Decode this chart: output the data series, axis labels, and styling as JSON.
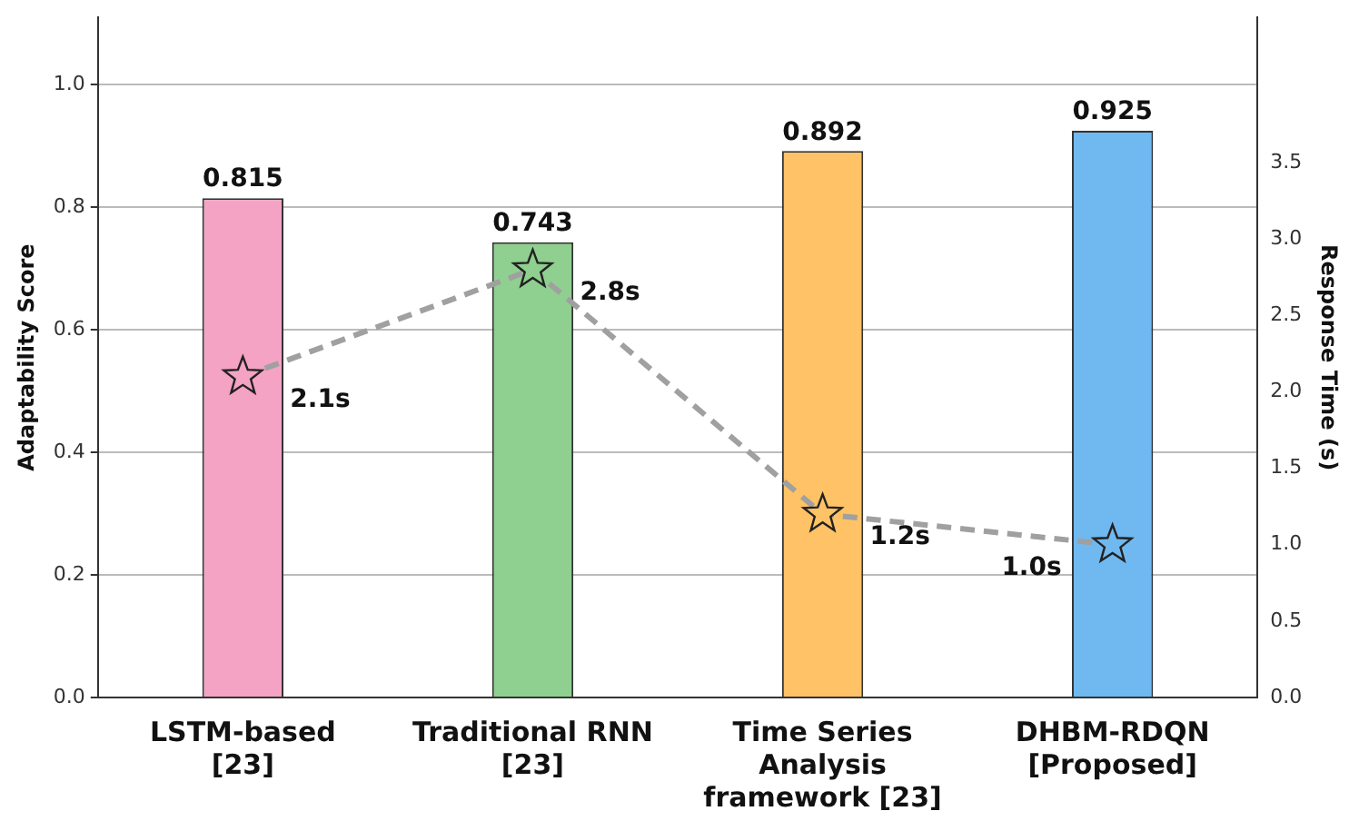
{
  "chart_data": {
    "type": "bar",
    "ylabel": "Adaptability Score",
    "y2label": "Response Time (s)",
    "categories": [
      "LSTM-based\n[23]",
      "Traditional RNN\n[23]",
      "Time Series\nAnalysis\nframework [23]",
      "DHBM-RDQN\n[Proposed]"
    ],
    "series": [
      {
        "colors": [
          "#f4a3c4",
          "#8fcf8f",
          "#ffc266",
          "#70b8f0"
        ],
        "values": [
          0.815,
          0.743,
          0.892,
          0.925
        ]
      },
      {
        "type": "line",
        "axis": "y2",
        "color": "#a0a0a0",
        "line_style": "dashed",
        "marker": "star",
        "colors": [
          "#f4a3c4",
          "#8fcf8f",
          "#ffc266",
          "#70b8f0"
        ],
        "values": [
          2.1,
          2.8,
          1.2,
          1.0
        ],
        "value_labels": [
          "2.1s",
          "2.8s",
          "1.2s",
          "1.0s"
        ]
      }
    ],
    "data_labels": true,
    "grid": "y",
    "legend": false,
    "ylim": [
      0,
      1.11
    ],
    "yticks": [
      {
        "value": 0,
        "label": "0.0"
      },
      {
        "value": 0.2,
        "label": "0.2"
      },
      {
        "value": 0.4,
        "label": "0.4"
      },
      {
        "value": 0.6,
        "label": "0.6"
      },
      {
        "value": 0.8,
        "label": "0.8"
      },
      {
        "value": 1,
        "label": "1.0"
      }
    ],
    "y2lim": [
      0,
      4.45
    ],
    "y2ticks": [
      {
        "value": 0,
        "label": "0.0"
      },
      {
        "value": 0.5,
        "label": "0.5"
      },
      {
        "value": 1,
        "label": "1.0"
      },
      {
        "value": 1.5,
        "label": "1.5"
      },
      {
        "value": 2,
        "label": "2.0"
      },
      {
        "value": 2.5,
        "label": "2.5"
      },
      {
        "value": 3,
        "label": "3.0"
      },
      {
        "value": 3.5,
        "label": "3.5"
      }
    ]
  }
}
